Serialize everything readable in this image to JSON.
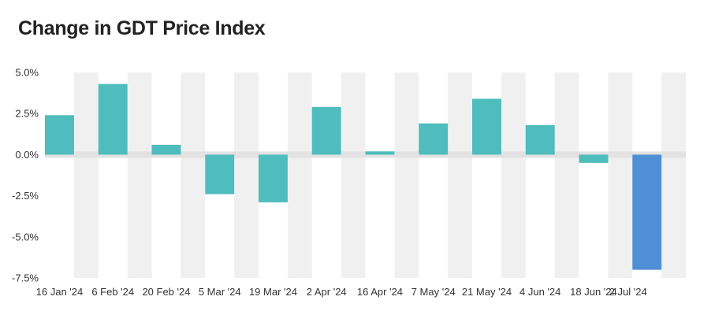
{
  "chart_data": {
    "type": "bar",
    "title": "Change in GDT Price Index",
    "xlabel": "",
    "ylabel": "",
    "categories": [
      "16 Jan '24",
      "6 Feb '24",
      "20 Feb '24",
      "5 Mar '24",
      "19 Mar '24",
      "2 Apr '24",
      "16 Apr '24",
      "7 May '24",
      "21 May '24",
      "4 Jun '24",
      "18 Jun '24",
      "2 Jul '24"
    ],
    "values": [
      2.4,
      4.3,
      0.6,
      -2.4,
      -2.9,
      2.9,
      0.2,
      1.9,
      3.4,
      1.8,
      -0.5,
      -7.0
    ],
    "ylim": [
      -7.5,
      5.0
    ],
    "yticks": [
      5.0,
      2.5,
      0.0,
      -2.5,
      -5.0,
      -7.5
    ],
    "ytick_labels": [
      "5.0%",
      "2.5%",
      "0.0%",
      "-2.5%",
      "-5.0%",
      "-7.5%"
    ],
    "grid": "alternating column bands",
    "legend": "none",
    "colors": {
      "bar": "#4fbcbd",
      "highlight_bar": "#4f8fd6",
      "band": "#f0f0f0",
      "zero_line": "#e2e2e2",
      "title": "#222222",
      "tick_text": "#333333"
    },
    "highlight_index": 11
  }
}
